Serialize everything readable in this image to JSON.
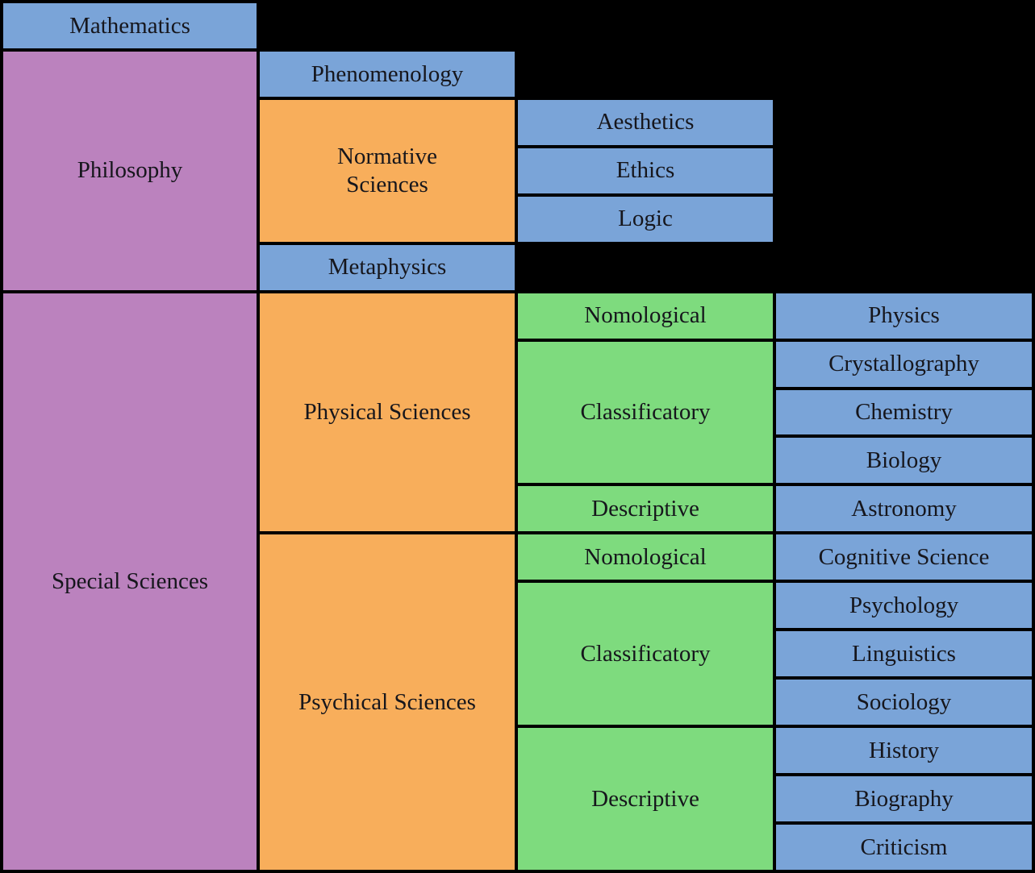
{
  "colors": {
    "background": "#000000",
    "border": "#000000",
    "text": "#16161c",
    "blue": "#7AA4D8",
    "purple": "#BB82BE",
    "orange": "#F8AE5B",
    "green": "#7EDB7E"
  },
  "hierarchy": {
    "mathematics": {
      "label": "Mathematics"
    },
    "philosophy": {
      "label": "Philosophy",
      "children": {
        "phenomenology": {
          "label": "Phenomenology"
        },
        "normative_sciences": {
          "label": "Normative Sciences",
          "children": {
            "aesthetics": {
              "label": "Aesthetics"
            },
            "ethics": {
              "label": "Ethics"
            },
            "logic": {
              "label": "Logic"
            }
          }
        },
        "metaphysics": {
          "label": "Metaphysics"
        }
      }
    },
    "special_sciences": {
      "label": "Special Sciences",
      "children": {
        "physical_sciences": {
          "label": "Physical Sciences",
          "children": {
            "nomological": {
              "label": "Nomological",
              "children": {
                "physics": {
                  "label": "Physics"
                }
              }
            },
            "classificatory": {
              "label": "Classificatory",
              "children": {
                "crystallography": {
                  "label": "Crystallography"
                },
                "chemistry": {
                  "label": "Chemistry"
                },
                "biology": {
                  "label": "Biology"
                }
              }
            },
            "descriptive": {
              "label": "Descriptive",
              "children": {
                "astronomy": {
                  "label": "Astronomy"
                }
              }
            }
          }
        },
        "psychical_sciences": {
          "label": "Psychical Sciences",
          "children": {
            "nomological": {
              "label": "Nomological",
              "children": {
                "cognitive_science": {
                  "label": "Cognitive Science"
                }
              }
            },
            "classificatory": {
              "label": "Classificatory",
              "children": {
                "psychology": {
                  "label": "Psychology"
                },
                "linguistics": {
                  "label": "Linguistics"
                },
                "sociology": {
                  "label": "Sociology"
                }
              }
            },
            "descriptive": {
              "label": "Descriptive",
              "children": {
                "history": {
                  "label": "History"
                },
                "biography": {
                  "label": "Biography"
                },
                "criticism": {
                  "label": "Criticism"
                }
              }
            }
          }
        }
      }
    }
  }
}
